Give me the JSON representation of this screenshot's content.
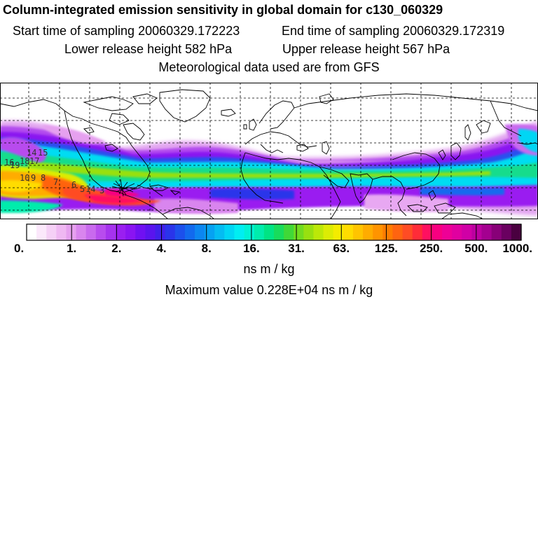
{
  "header": {
    "title": "Column-integrated emission sensitivity in global domain for c130_060329",
    "start_label": "Start time of sampling 20060329.172223",
    "end_label": "End time of sampling 20060329.172319",
    "lower_label": "Lower release height  582 hPa",
    "upper_label": "Upper release height  567 hPa",
    "met_label": "Meteorological data used are from GFS"
  },
  "colorbar": {
    "colors": [
      "#ffffff",
      "#fbe8fb",
      "#f5d0f6",
      "#efb8f2",
      "#e6a0ef",
      "#d985ee",
      "#c96aee",
      "#b84cee",
      "#a633ee",
      "#9a1ff0",
      "#8a14f2",
      "#7010f2",
      "#5a14ee",
      "#4020ea",
      "#2a34ea",
      "#1c50ec",
      "#126aee",
      "#0c86f0",
      "#06a2f2",
      "#04bcf2",
      "#00d6f4",
      "#00eef2",
      "#00f2d4",
      "#00ecac",
      "#00e484",
      "#18dc5c",
      "#40d838",
      "#70dc20",
      "#98e010",
      "#bce808",
      "#dcec04",
      "#f4ec00",
      "#ffdc00",
      "#ffc400",
      "#ffac00",
      "#ff9400",
      "#ff7c00",
      "#ff6410",
      "#ff4c24",
      "#ff2c38",
      "#ff1060",
      "#f80080",
      "#ee0096",
      "#e000a0",
      "#d000a6",
      "#bc00a0",
      "#a40090",
      "#880078",
      "#6a0060",
      "#4a0040"
    ],
    "tick_labels": [
      "0.",
      "1.",
      "2.",
      "4.",
      "8.",
      "16.",
      "31.",
      "63.",
      "125.",
      "250.",
      "500.",
      "1000."
    ],
    "units": "ns m / kg",
    "max_value": "Maximum value  0.228E+04 ns m / kg"
  },
  "map": {
    "release_labels": [
      "14",
      "15",
      "16",
      "19",
      "18",
      "17",
      "10",
      "9",
      "8",
      "7",
      "6",
      "5",
      "14",
      "3"
    ]
  }
}
